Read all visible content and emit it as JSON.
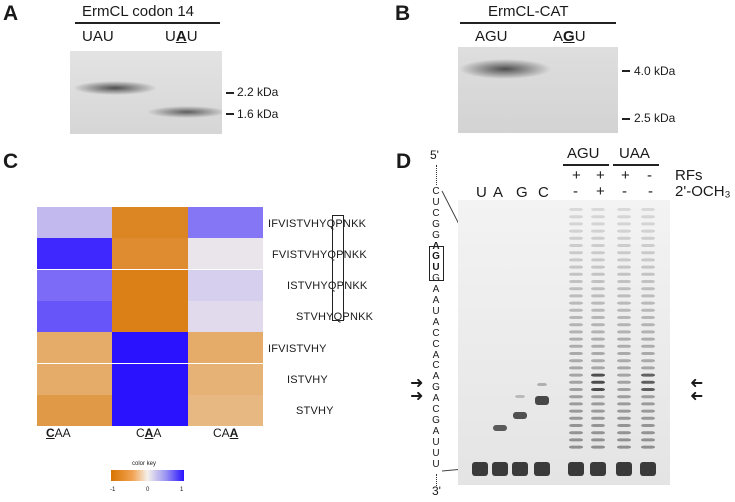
{
  "panelA": {
    "letter": "A",
    "title": "ErmCL codon 14",
    "lanes": [
      {
        "pre": "UAU",
        "bold": "",
        "post": ""
      },
      {
        "pre": "U",
        "bold": "A",
        "post": "U"
      }
    ],
    "markers": [
      "2.2 kDa",
      "1.6 kDa"
    ]
  },
  "panelB": {
    "letter": "B",
    "title": "ErmCL-CAT",
    "lanes": [
      {
        "pre": "AGU",
        "bold": "",
        "post": ""
      },
      {
        "pre": "A",
        "bold": "G",
        "post": "U"
      }
    ],
    "markers": [
      "4.0 kDa",
      "2.5 kDa"
    ]
  },
  "panelC": {
    "letter": "C",
    "peptides": [
      "IFVISTVHYQPNKK",
      "FVISTVHYQPNKK",
      "ISTVHYQPNKK",
      "STVHYQPNKK",
      "IFVISTVHY",
      "ISTVHY",
      "STVHY"
    ],
    "columns": [
      {
        "pre": "",
        "bold": "C",
        "post": "AA"
      },
      {
        "pre": "C",
        "bold": "A",
        "post": "A"
      },
      {
        "pre": "CA",
        "bold": "A",
        "post": ""
      }
    ],
    "heatmap": [
      [
        0.25,
        -0.85,
        0.55
      ],
      [
        0.9,
        -0.8,
        0.05
      ],
      [
        0.6,
        -0.9,
        0.15
      ],
      [
        0.7,
        -0.9,
        0.1
      ],
      [
        -0.55,
        1.0,
        -0.55
      ],
      [
        -0.55,
        1.0,
        -0.5
      ],
      [
        -0.7,
        1.0,
        -0.45
      ]
    ],
    "color_key": {
      "title": "color key",
      "ticks": [
        "-1",
        "0",
        "1"
      ]
    }
  },
  "panelD": {
    "letter": "D",
    "five_prime": "5'",
    "three_prime": "3'",
    "sequence": [
      "C",
      "U",
      "C",
      "G",
      "G",
      "A",
      "G",
      "U",
      "G",
      "A",
      "A",
      "U",
      "A",
      "C",
      "C",
      "A",
      "C",
      "A",
      "G",
      "A",
      "C",
      "G",
      "A",
      "U",
      "U",
      "U"
    ],
    "boxed_codon": "AGU",
    "seq_lanes": [
      "U",
      "A",
      "G",
      "C"
    ],
    "groups": [
      "AGU",
      "UAA"
    ],
    "rows": [
      {
        "label": "RFs",
        "values": [
          "+",
          "+",
          "+",
          "-"
        ]
      },
      {
        "label": "2'-OCH₃",
        "values": [
          "-",
          "+",
          "-",
          "-"
        ]
      }
    ]
  }
}
